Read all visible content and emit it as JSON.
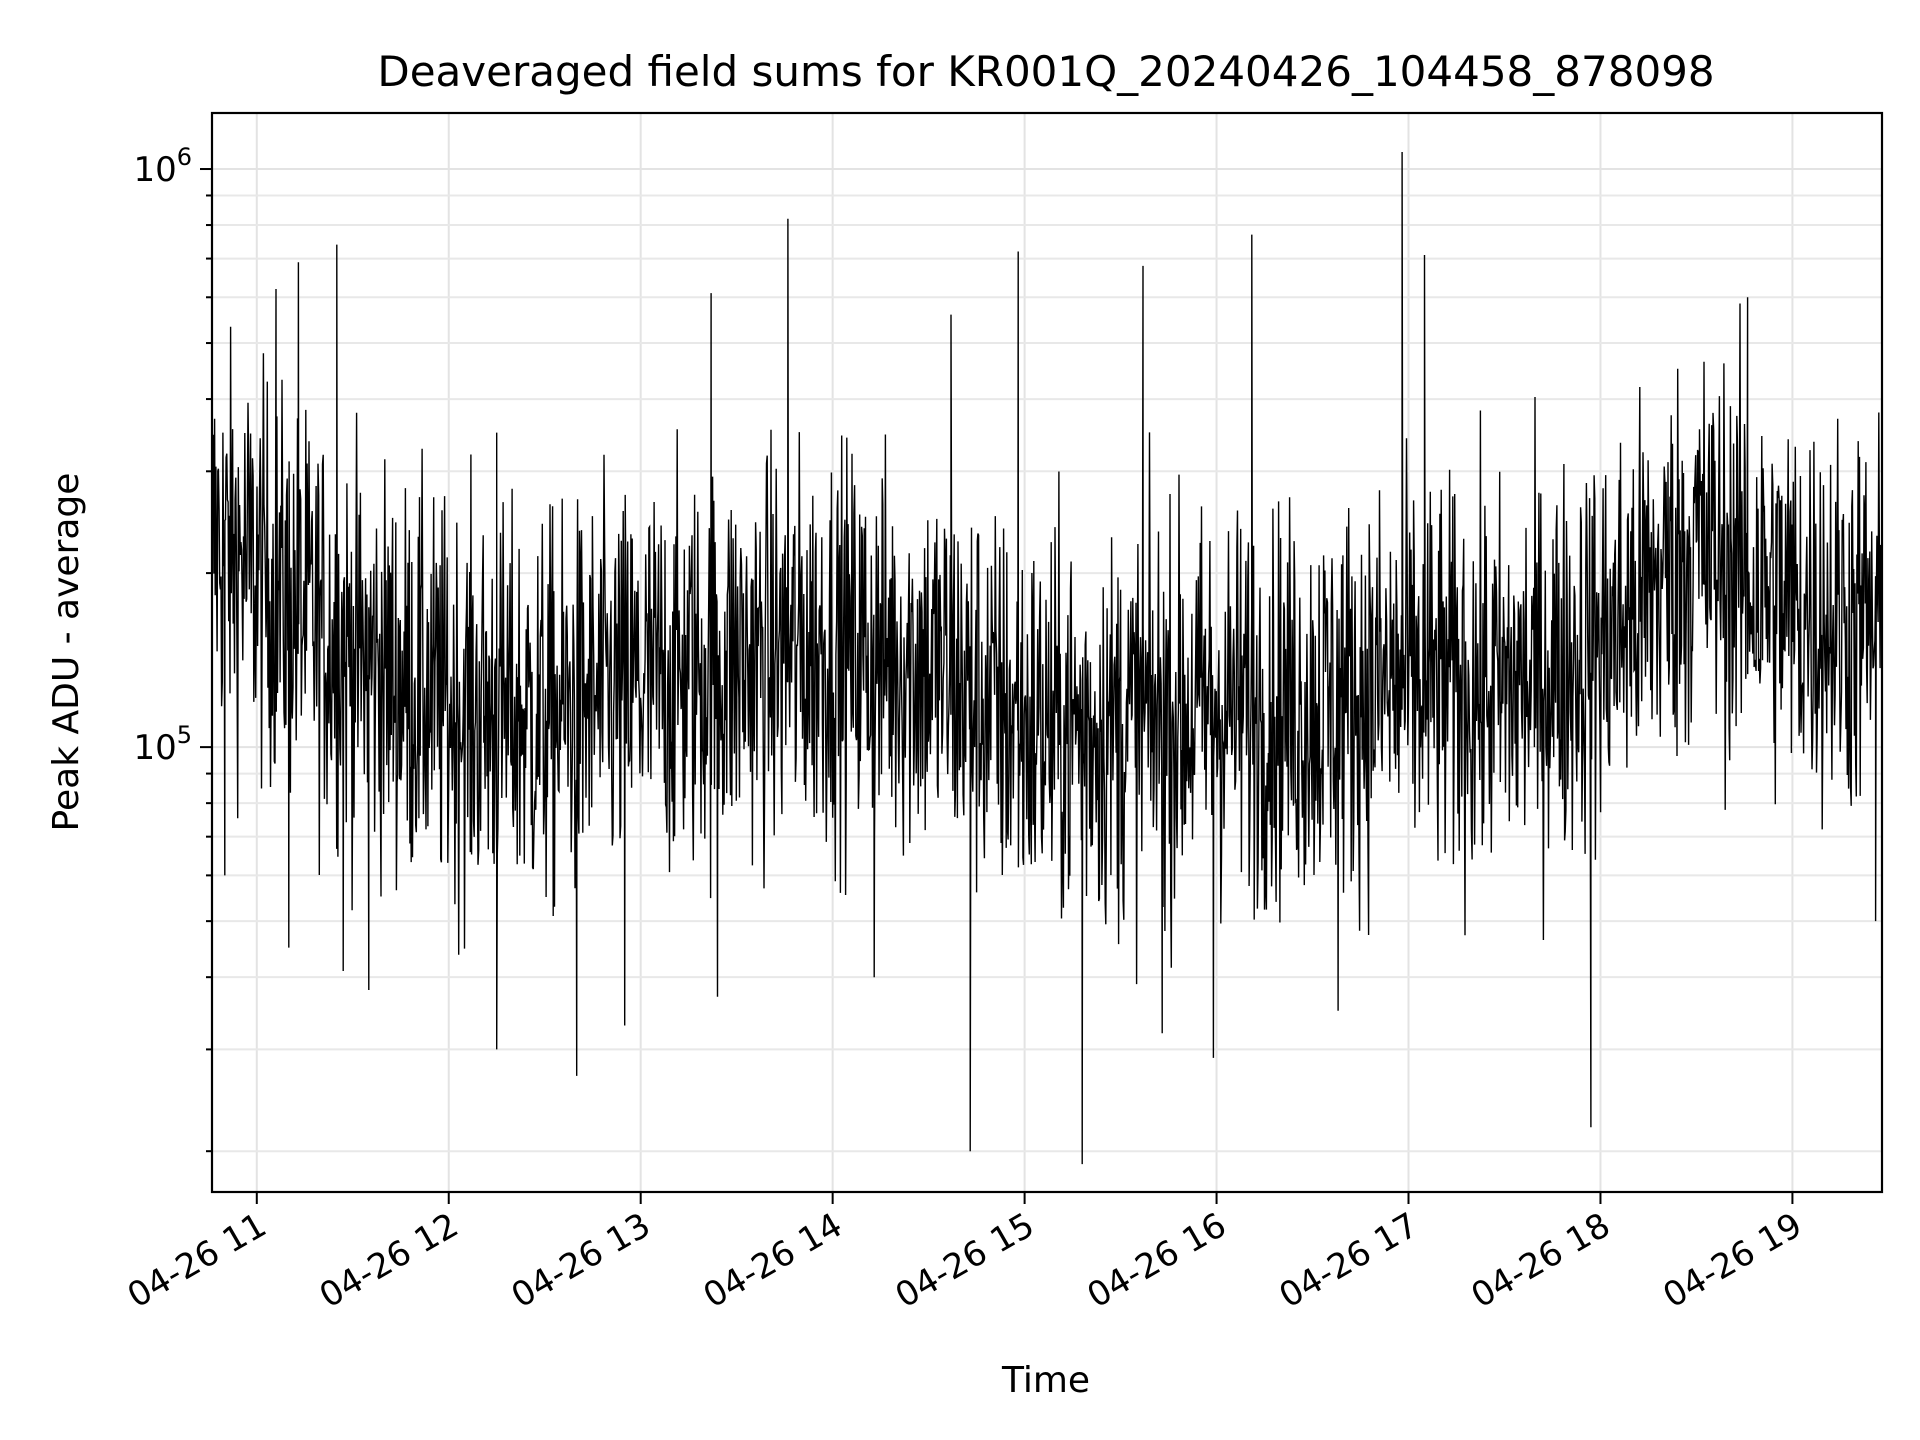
{
  "chart_data": {
    "type": "line",
    "title": "Deaveraged field sums for KR001Q_20240426_104458_878098",
    "xlabel": "Time",
    "ylabel": "Peak ADU - average",
    "xscale": "time",
    "yscale": "log",
    "x_range": [
      "2024-04-26 10:46",
      "2024-04-26 19:28"
    ],
    "ylim": [
      17000,
      1250000
    ],
    "x_ticks": [
      {
        "time": "2024-04-26 11:00",
        "label": "04-26 11"
      },
      {
        "time": "2024-04-26 12:00",
        "label": "04-26 12"
      },
      {
        "time": "2024-04-26 13:00",
        "label": "04-26 13"
      },
      {
        "time": "2024-04-26 14:00",
        "label": "04-26 14"
      },
      {
        "time": "2024-04-26 15:00",
        "label": "04-26 15"
      },
      {
        "time": "2024-04-26 16:00",
        "label": "04-26 16"
      },
      {
        "time": "2024-04-26 17:00",
        "label": "04-26 17"
      },
      {
        "time": "2024-04-26 18:00",
        "label": "04-26 18"
      },
      {
        "time": "2024-04-26 19:00",
        "label": "04-26 19"
      }
    ],
    "y_ticks": [
      {
        "value": 100000,
        "base": "10",
        "exp": "5"
      },
      {
        "value": 1000000,
        "base": "10",
        "exp": "6"
      }
    ],
    "grid": true,
    "legend": "none",
    "line_color": "#000000",
    "series": [
      {
        "trend": [
          {
            "time": "2024-04-26 10:46",
            "value": 230000
          },
          {
            "time": "2024-04-26 11:00",
            "value": 200000
          },
          {
            "time": "2024-04-26 11:30",
            "value": 145000
          },
          {
            "time": "2024-04-26 12:00",
            "value": 118000
          },
          {
            "time": "2024-04-26 12:30",
            "value": 112000
          },
          {
            "time": "2024-04-26 13:00",
            "value": 128000
          },
          {
            "time": "2024-04-26 13:30",
            "value": 140000
          },
          {
            "time": "2024-04-26 14:00",
            "value": 150000
          },
          {
            "time": "2024-04-26 14:30",
            "value": 140000
          },
          {
            "time": "2024-04-26 15:00",
            "value": 108000
          },
          {
            "time": "2024-04-26 15:30",
            "value": 108000
          },
          {
            "time": "2024-04-26 16:00",
            "value": 118000
          },
          {
            "time": "2024-04-26 16:30",
            "value": 118000
          },
          {
            "time": "2024-04-26 17:00",
            "value": 130000
          },
          {
            "time": "2024-04-26 17:30",
            "value": 125000
          },
          {
            "time": "2024-04-26 18:00",
            "value": 150000
          },
          {
            "time": "2024-04-26 18:30",
            "value": 225000
          },
          {
            "time": "2024-04-26 19:00",
            "value": 175000
          },
          {
            "time": "2024-04-26 19:28",
            "value": 160000
          }
        ],
        "spikes": [
          {
            "time": "2024-04-26 10:50",
            "value": 60000
          },
          {
            "time": "2024-04-26 11:06",
            "value": 620000
          },
          {
            "time": "2024-04-26 11:10",
            "value": 45000
          },
          {
            "time": "2024-04-26 11:13",
            "value": 690000
          },
          {
            "time": "2024-04-26 11:25",
            "value": 740000
          },
          {
            "time": "2024-04-26 11:27",
            "value": 41000
          },
          {
            "time": "2024-04-26 11:35",
            "value": 38000
          },
          {
            "time": "2024-04-26 12:15",
            "value": 350000
          },
          {
            "time": "2024-04-26 12:15",
            "value": 30000
          },
          {
            "time": "2024-04-26 12:40",
            "value": 27000
          },
          {
            "time": "2024-04-26 12:55",
            "value": 33000
          },
          {
            "time": "2024-04-26 13:22",
            "value": 610000
          },
          {
            "time": "2024-04-26 13:24",
            "value": 37000
          },
          {
            "time": "2024-04-26 13:46",
            "value": 820000
          },
          {
            "time": "2024-04-26 14:13",
            "value": 40000
          },
          {
            "time": "2024-04-26 14:37",
            "value": 560000
          },
          {
            "time": "2024-04-26 14:43",
            "value": 20000
          },
          {
            "time": "2024-04-26 14:58",
            "value": 720000
          },
          {
            "time": "2024-04-26 15:18",
            "value": 19000
          },
          {
            "time": "2024-04-26 15:37",
            "value": 680000
          },
          {
            "time": "2024-04-26 15:43",
            "value": 32000
          },
          {
            "time": "2024-04-26 15:59",
            "value": 29000
          },
          {
            "time": "2024-04-26 16:11",
            "value": 770000
          },
          {
            "time": "2024-04-26 16:38",
            "value": 35000
          },
          {
            "time": "2024-04-26 16:58",
            "value": 1070000
          },
          {
            "time": "2024-04-26 17:05",
            "value": 710000
          },
          {
            "time": "2024-04-26 17:57",
            "value": 22000
          },
          {
            "time": "2024-04-26 18:46",
            "value": 600000
          },
          {
            "time": "2024-04-26 19:26",
            "value": 50000
          }
        ]
      }
    ]
  }
}
